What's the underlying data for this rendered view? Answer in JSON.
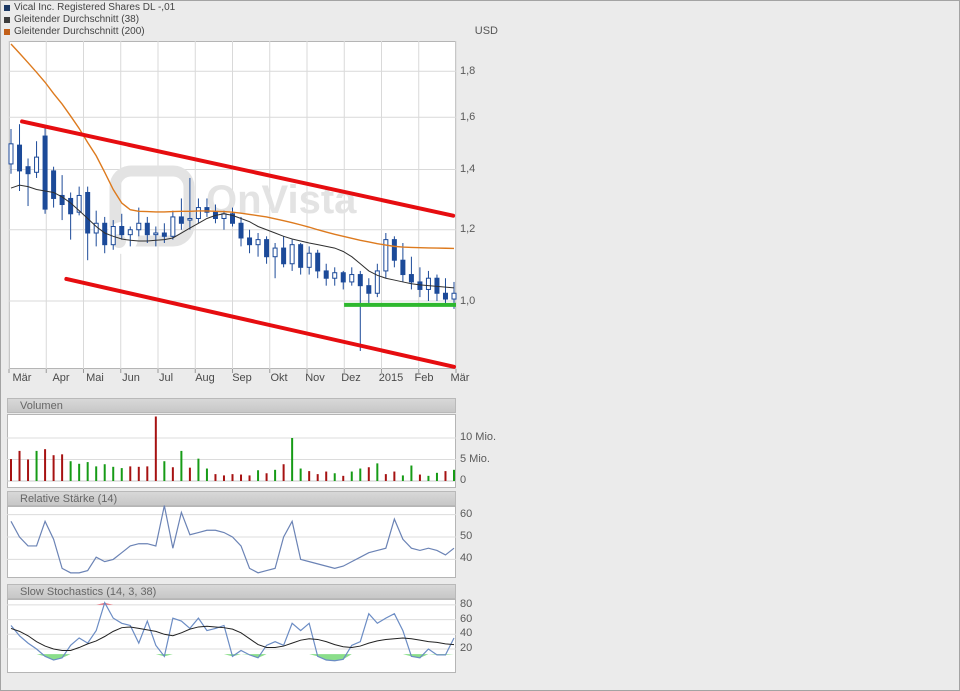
{
  "page": {
    "background": "#ebebeb",
    "currency_label": "USD",
    "watermark_text": "OnVista"
  },
  "legend": {
    "items": [
      {
        "label": "Vical Inc. Registered Shares DL -,01",
        "color": "#1b3864"
      },
      {
        "label": "Gleitender Durchschnitt (38)",
        "color": "#3d3d3d"
      },
      {
        "label": "Gleitender Durchschnitt (200)",
        "color": "#c2601a"
      }
    ]
  },
  "panels": {
    "volume": {
      "title": "Volumen"
    },
    "rsi": {
      "title": "Relative Stärke (14)"
    },
    "stoch": {
      "title": "Slow Stochastics (14, 3, 38)"
    }
  },
  "chart_data": {
    "type": "candlestick",
    "timeframe": "weekly, März 2014 – März 2015",
    "x_axis": {
      "labels": [
        "Mär",
        "Apr",
        "Mai",
        "Jun",
        "Jul",
        "Aug",
        "Sep",
        "Okt",
        "Nov",
        "Dez",
        "2015",
        "Feb",
        "Mär"
      ]
    },
    "price_panel": {
      "unit": "USD",
      "scale": "log",
      "y_ticks": [
        {
          "label": "1,8",
          "value": 1.8
        },
        {
          "label": "1,6",
          "value": 1.6
        },
        {
          "label": "1,4",
          "value": 1.4
        },
        {
          "label": "1,2",
          "value": 1.2
        },
        {
          "label": "1,0",
          "value": 1.0
        }
      ],
      "candles": [
        [
          1.42,
          1.553,
          1.385,
          1.495
        ],
        [
          1.49,
          1.572,
          1.325,
          1.395
        ],
        [
          1.41,
          1.44,
          1.275,
          1.385
        ],
        [
          1.39,
          1.505,
          1.37,
          1.445
        ],
        [
          1.525,
          1.556,
          1.25,
          1.265
        ],
        [
          1.395,
          1.41,
          1.27,
          1.3
        ],
        [
          1.31,
          1.38,
          1.23,
          1.28
        ],
        [
          1.3,
          1.32,
          1.17,
          1.25
        ],
        [
          1.255,
          1.34,
          1.245,
          1.31
        ],
        [
          1.32,
          1.34,
          1.11,
          1.19
        ],
        [
          1.19,
          1.26,
          1.15,
          1.22
        ],
        [
          1.22,
          1.24,
          1.13,
          1.155
        ],
        [
          1.155,
          1.23,
          1.14,
          1.21
        ],
        [
          1.21,
          1.25,
          1.17,
          1.185
        ],
        [
          1.185,
          1.21,
          1.15,
          1.2
        ],
        [
          1.2,
          1.27,
          1.18,
          1.22
        ],
        [
          1.22,
          1.24,
          1.16,
          1.185
        ],
        [
          1.185,
          1.21,
          1.15,
          1.19
        ],
        [
          1.19,
          1.22,
          1.16,
          1.18
        ],
        [
          1.18,
          1.26,
          1.17,
          1.24
        ],
        [
          1.24,
          1.3,
          1.2,
          1.22
        ],
        [
          1.23,
          1.37,
          1.2,
          1.235
        ],
        [
          1.235,
          1.3,
          1.22,
          1.27
        ],
        [
          1.27,
          1.3,
          1.24,
          1.255
        ],
        [
          1.255,
          1.28,
          1.22,
          1.235
        ],
        [
          1.235,
          1.26,
          1.2,
          1.25
        ],
        [
          1.25,
          1.27,
          1.21,
          1.22
        ],
        [
          1.22,
          1.24,
          1.15,
          1.175
        ],
        [
          1.175,
          1.2,
          1.13,
          1.155
        ],
        [
          1.155,
          1.19,
          1.12,
          1.17
        ],
        [
          1.17,
          1.18,
          1.1,
          1.12
        ],
        [
          1.12,
          1.16,
          1.06,
          1.145
        ],
        [
          1.145,
          1.18,
          1.09,
          1.1
        ],
        [
          1.1,
          1.17,
          1.08,
          1.155
        ],
        [
          1.155,
          1.16,
          1.07,
          1.09
        ],
        [
          1.09,
          1.15,
          1.07,
          1.13
        ],
        [
          1.13,
          1.14,
          1.06,
          1.08
        ],
        [
          1.08,
          1.1,
          1.04,
          1.06
        ],
        [
          1.06,
          1.09,
          1.04,
          1.075
        ],
        [
          1.075,
          1.08,
          1.03,
          1.05
        ],
        [
          1.05,
          1.09,
          1.04,
          1.07
        ],
        [
          1.07,
          1.08,
          0.88,
          1.04
        ],
        [
          1.04,
          1.06,
          0.99,
          1.02
        ],
        [
          1.02,
          1.1,
          1.01,
          1.08
        ],
        [
          1.08,
          1.19,
          1.06,
          1.17
        ],
        [
          1.17,
          1.18,
          1.09,
          1.11
        ],
        [
          1.11,
          1.16,
          1.05,
          1.07
        ],
        [
          1.07,
          1.12,
          1.03,
          1.05
        ],
        [
          1.05,
          1.09,
          1.01,
          1.03
        ],
        [
          1.03,
          1.08,
          1.0,
          1.06
        ],
        [
          1.06,
          1.07,
          1.0,
          1.02
        ],
        [
          1.02,
          1.06,
          0.99,
          1.005
        ],
        [
          1.005,
          1.05,
          0.98,
          1.02
        ]
      ],
      "ma38": [
        1.335,
        1.345,
        1.34,
        1.33,
        1.325,
        1.32,
        1.305,
        1.285,
        1.26,
        1.235,
        1.21,
        1.19,
        1.18,
        1.172,
        1.168,
        1.166,
        1.166,
        1.168,
        1.17,
        1.175,
        1.19,
        1.205,
        1.22,
        1.235,
        1.245,
        1.25,
        1.245,
        1.235,
        1.225,
        1.21,
        1.2,
        1.19,
        1.18,
        1.172,
        1.166,
        1.16,
        1.155,
        1.15,
        1.145,
        1.135,
        1.12,
        1.1,
        1.08,
        1.068,
        1.06,
        1.055,
        1.05,
        1.045,
        1.042,
        1.04,
        1.038,
        1.036,
        1.034
      ],
      "ma200": [
        1.93,
        1.885,
        1.84,
        1.795,
        1.75,
        1.7,
        1.655,
        1.605,
        1.555,
        1.5,
        1.45,
        1.39,
        1.33,
        1.285,
        1.263,
        1.258,
        1.257,
        1.256,
        1.256,
        1.257,
        1.258,
        1.258,
        1.259,
        1.259,
        1.258,
        1.257,
        1.255,
        1.252,
        1.248,
        1.244,
        1.24,
        1.234,
        1.228,
        1.222,
        1.215,
        1.208,
        1.2,
        1.193,
        1.186,
        1.18,
        1.174,
        1.168,
        1.163,
        1.158,
        1.154,
        1.15,
        1.148,
        1.147,
        1.146,
        1.1455,
        1.145,
        1.1445,
        1.144
      ],
      "trend_channel": {
        "upper": {
          "week1": 1.3,
          "price1": 1.583,
          "week2": 51.9,
          "price2": 1.244,
          "color": "#e60d10"
        },
        "lower": {
          "week1": 6.5,
          "price1": 1.058,
          "week2": 52.0,
          "price2": 0.845,
          "color": "#e60d10"
        }
      },
      "support_line": {
        "price": 0.99,
        "week1": 39.1,
        "week2": 52.3,
        "color": "#2eb82e"
      },
      "colors": {
        "candle": "#1c4a99",
        "ma38_line": "#2f2f2f",
        "ma200_line": "#dd7a1e"
      }
    },
    "volume_panel": {
      "y_ticks": [
        {
          "label": "10 Mio.",
          "value": 10
        },
        {
          "label": "5 Mio.",
          "value": 5
        },
        {
          "label": "0",
          "value": 0
        }
      ],
      "unit": "Mio.",
      "values": [
        5.1,
        7.0,
        5.0,
        7.0,
        7.4,
        6.0,
        6.2,
        4.6,
        4.0,
        4.4,
        3.4,
        3.9,
        3.3,
        3.0,
        3.4,
        3.3,
        3.4,
        15.0,
        4.6,
        3.2,
        7.0,
        3.1,
        5.2,
        2.9,
        1.6,
        1.3,
        1.6,
        1.5,
        1.3,
        2.5,
        1.8,
        2.6,
        3.9,
        10.0,
        2.9,
        2.3,
        1.6,
        2.2,
        1.8,
        1.2,
        2.2,
        2.9,
        3.2,
        4.1,
        1.6,
        2.2,
        1.3,
        3.6,
        1.5,
        1.2,
        1.9,
        2.3,
        2.6
      ],
      "directions": [
        "r",
        "r",
        "r",
        "g",
        "r",
        "r",
        "r",
        "g",
        "g",
        "g",
        "g",
        "g",
        "g",
        "g",
        "r",
        "r",
        "r",
        "r",
        "g",
        "r",
        "g",
        "r",
        "g",
        "g",
        "r",
        "r",
        "r",
        "r",
        "r",
        "g",
        "r",
        "g",
        "r",
        "g",
        "g",
        "r",
        "r",
        "r",
        "g",
        "r",
        "g",
        "g",
        "r",
        "g",
        "r",
        "r",
        "g",
        "g",
        "r",
        "g",
        "g",
        "r",
        "g"
      ],
      "colors": {
        "down": "#a61212",
        "up": "#169b16"
      }
    },
    "rsi_panel": {
      "y_ticks": [
        {
          "label": "60",
          "value": 60
        },
        {
          "label": "50",
          "value": 50
        },
        {
          "label": "40",
          "value": 40
        }
      ],
      "values": [
        57,
        50,
        46,
        46,
        57,
        49,
        36,
        34,
        34,
        35,
        41,
        39,
        40,
        43,
        46,
        47,
        47,
        46,
        64,
        45,
        61,
        51,
        52,
        53,
        53,
        52,
        50,
        46,
        36,
        34,
        35,
        36,
        50,
        57,
        40,
        39,
        38,
        37,
        36,
        37,
        39,
        41,
        43,
        44,
        45,
        58,
        49,
        45,
        44,
        45,
        44,
        42,
        45
      ],
      "colors": {
        "line": "#6b83b5"
      }
    },
    "stoch_panel": {
      "y_ticks": [
        {
          "label": "80",
          "value": 80
        },
        {
          "label": "60",
          "value": 60
        },
        {
          "label": "40",
          "value": 40
        },
        {
          "label": "20",
          "value": 20
        }
      ],
      "k": [
        52,
        38,
        28,
        20,
        10,
        5,
        8,
        25,
        35,
        28,
        45,
        83,
        62,
        55,
        52,
        28,
        58,
        25,
        10,
        62,
        58,
        48,
        62,
        45,
        48,
        52,
        10,
        18,
        12,
        8,
        25,
        30,
        25,
        55,
        45,
        55,
        10,
        5,
        4,
        6,
        25,
        30,
        68,
        55,
        62,
        68,
        45,
        10,
        8,
        20,
        12,
        12,
        35
      ],
      "d": [
        48,
        44,
        38,
        30,
        24,
        20,
        18,
        18,
        22,
        27,
        31,
        37,
        44,
        49,
        50,
        48,
        46,
        44,
        40,
        38,
        42,
        47,
        50,
        51,
        50,
        49,
        47,
        42,
        34,
        26,
        22,
        22,
        24,
        28,
        32,
        34,
        33,
        30,
        26,
        23,
        22,
        24,
        28,
        31,
        33,
        34,
        35,
        34,
        32,
        30,
        29,
        27,
        26
      ],
      "oversold_level": 13,
      "overbought_level": 80,
      "colors": {
        "k_line": "#6b8cc4",
        "d_line": "#222222",
        "oversold_fill": "#8ade8a",
        "overbought_fill": "#e87a84"
      }
    }
  }
}
